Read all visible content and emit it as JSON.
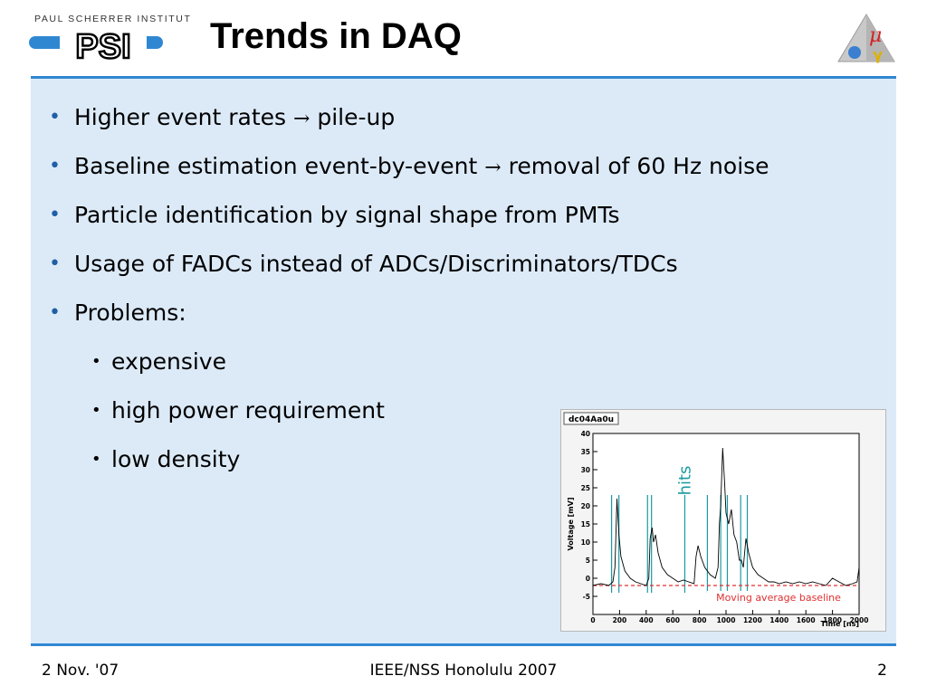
{
  "header": {
    "institute": "PAUL SCHERRER INSTITUT",
    "logo_text": "PSI",
    "title": "Trends in DAQ"
  },
  "bullets": [
    {
      "level": 1,
      "text": "Higher event rates ",
      "arrow": "→",
      "text_after": " pile-up"
    },
    {
      "level": 1,
      "text": "Baseline estimation event-by-event ",
      "arrow": "→",
      "text_after": " removal of 60 Hz noise"
    },
    {
      "level": 1,
      "text": "Particle identification by signal shape from PMTs"
    },
    {
      "level": 1,
      "text": "Usage of FADCs instead of ADCs/Discriminators/TDCs"
    },
    {
      "level": 1,
      "text": "Problems:"
    },
    {
      "level": 2,
      "text": "expensive"
    },
    {
      "level": 2,
      "text": "high power requirement"
    },
    {
      "level": 2,
      "text": "low density"
    }
  ],
  "chart_data": {
    "type": "line",
    "title": "dc04Aa0u",
    "xlabel": "Time [ns]",
    "ylabel": "Voltage [mV]",
    "xlim": [
      0,
      2000
    ],
    "ylim": [
      -10,
      40
    ],
    "x_ticks": [
      0,
      200,
      400,
      600,
      800,
      1000,
      1200,
      1400,
      1600,
      1800,
      2000
    ],
    "y_ticks": [
      -5,
      0,
      5,
      10,
      15,
      20,
      25,
      30,
      35,
      40
    ],
    "grid": false,
    "series": [
      {
        "x": [
          0,
          60,
          120,
          150,
          165,
          180,
          195,
          210,
          240,
          280,
          320,
          360,
          400,
          420,
          430,
          445,
          455,
          470,
          490,
          520,
          560,
          600,
          640,
          680,
          720,
          760,
          775,
          790,
          810,
          840,
          880,
          920,
          940,
          950,
          960,
          975,
          990,
          1000,
          1020,
          1040,
          1060,
          1080,
          1100,
          1115,
          1130,
          1150,
          1170,
          1200,
          1240,
          1280,
          1320,
          1360,
          1400,
          1450,
          1500,
          1550,
          1600,
          1650,
          1700,
          1750,
          1800,
          1850,
          1900,
          1950,
          1985,
          2000
        ],
        "values": [
          -2,
          -1.5,
          -2,
          -1,
          3,
          22,
          12,
          6,
          2,
          0,
          -1,
          -1.5,
          -2,
          0,
          11,
          14,
          10,
          12,
          7,
          3,
          1,
          0,
          -1,
          -0.5,
          -1,
          -1.5,
          6,
          9,
          6,
          3,
          1,
          0,
          3,
          15,
          20,
          36,
          26,
          18,
          15,
          19,
          12,
          10,
          5,
          5,
          3,
          11,
          7,
          3,
          1,
          0,
          -1,
          -1,
          -1.5,
          -1,
          -1.5,
          -1,
          -1.5,
          -1,
          -1.5,
          -2,
          0,
          -1,
          -2,
          -1.5,
          -1,
          3
        ]
      }
    ],
    "baseline_label": "Moving average baseline",
    "baseline_value": -2,
    "hits_label": "hits",
    "hit_times": [
      140,
      195,
      410,
      440,
      690,
      860,
      960,
      1010,
      1110,
      1160
    ],
    "colors": {
      "trace": "#000000",
      "baseline": "#e03030",
      "hits": "#1a9aa0"
    }
  },
  "footer": {
    "date": "2 Nov. '07",
    "conference": "IEEE/NSS Honolulu 2007",
    "page": "2"
  },
  "colors": {
    "accent": "#2f87d2",
    "panel": "#dceaf8",
    "bullet": "#1f5fa6"
  }
}
